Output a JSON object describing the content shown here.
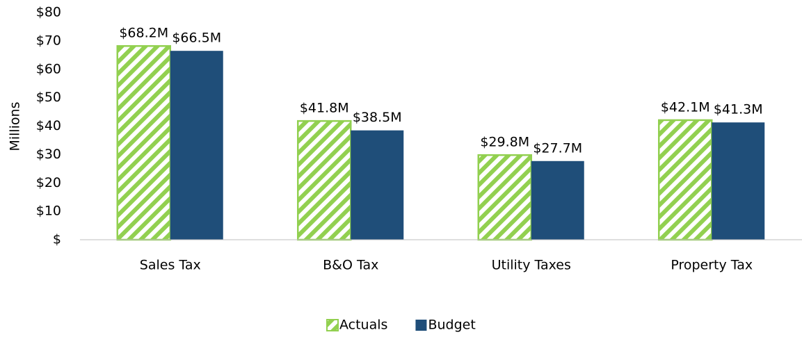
{
  "chart_data": {
    "type": "bar",
    "y_label": "Millions",
    "categories": [
      "Sales Tax",
      "B&O Tax",
      "Utility Taxes",
      "Property Tax"
    ],
    "series": [
      {
        "name": "Actuals",
        "color": "#92d050",
        "hatch": true,
        "values": [
          68.2,
          41.8,
          29.8,
          42.1
        ],
        "value_labels": [
          "$68.2M",
          "$41.8M",
          "$29.8M",
          "$42.1M"
        ]
      },
      {
        "name": "Budget",
        "color": "#1f4e79",
        "hatch": false,
        "values": [
          66.5,
          38.5,
          27.7,
          41.3
        ],
        "value_labels": [
          "$66.5M",
          "$38.5M",
          "$27.7M",
          "$41.3M"
        ]
      }
    ],
    "ylim": [
      0,
      80
    ],
    "yticks": [
      {
        "value": 0,
        "label": "$"
      },
      {
        "value": 10,
        "label": "$10"
      },
      {
        "value": 20,
        "label": "$20"
      },
      {
        "value": 30,
        "label": "$30"
      },
      {
        "value": 40,
        "label": "$40"
      },
      {
        "value": 50,
        "label": "$50"
      },
      {
        "value": 60,
        "label": "$60"
      },
      {
        "value": 70,
        "label": "$70"
      },
      {
        "value": 80,
        "label": "$80"
      }
    ],
    "grid": false,
    "legend": "bottom"
  }
}
